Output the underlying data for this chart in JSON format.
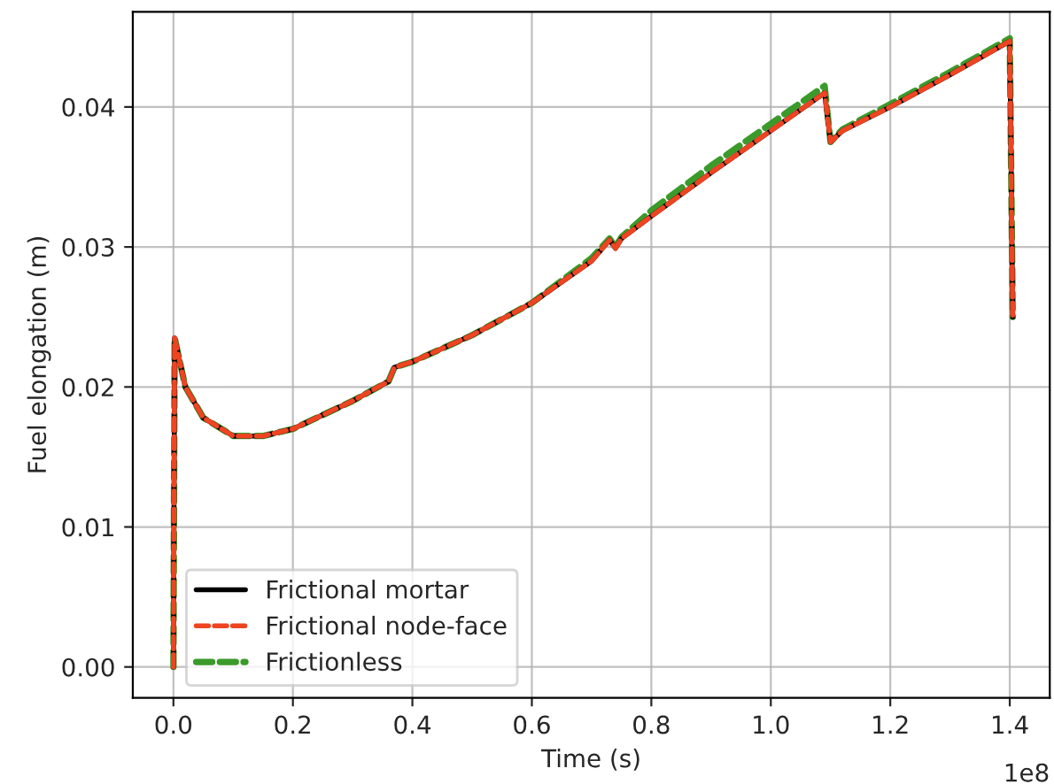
{
  "chart_data": {
    "type": "line",
    "xlabel": "Time (s)",
    "ylabel": "Fuel elongation (m)",
    "annotations": [
      "1e8"
    ],
    "x": [
      0,
      0.002,
      0.02,
      0.05,
      0.1,
      0.15,
      0.2,
      0.3,
      0.36,
      0.37,
      0.4,
      0.5,
      0.6,
      0.7,
      0.73,
      0.74,
      0.75,
      0.8,
      0.9,
      1.0,
      1.09,
      1.1,
      1.12,
      1.2,
      1.3,
      1.4,
      1.405
    ],
    "series": [
      {
        "name": "Frictional mortar",
        "color": "#000000",
        "line_style": "solid",
        "values": [
          0,
          0.0235,
          0.02,
          0.0178,
          0.0165,
          0.0165,
          0.017,
          0.019,
          0.0204,
          0.0214,
          0.0218,
          0.0237,
          0.026,
          0.029,
          0.0305,
          0.0299,
          0.0306,
          0.0322,
          0.0353,
          0.0383,
          0.041,
          0.0375,
          0.0383,
          0.04,
          0.0423,
          0.0447,
          0.025
        ]
      },
      {
        "name": "Frictional node-face",
        "color": "#ee4422",
        "line_style": "dashed",
        "values": [
          0,
          0.0235,
          0.02,
          0.0178,
          0.0165,
          0.0165,
          0.017,
          0.019,
          0.0204,
          0.0214,
          0.0218,
          0.0237,
          0.026,
          0.029,
          0.0305,
          0.0299,
          0.0306,
          0.0322,
          0.0353,
          0.0383,
          0.041,
          0.0375,
          0.0383,
          0.04,
          0.0423,
          0.0447,
          0.025
        ]
      },
      {
        "name": "Frictionless",
        "color": "#3a9a2a",
        "line_style": "dashed",
        "values": [
          0,
          0.0235,
          0.02,
          0.0178,
          0.0165,
          0.0165,
          0.017,
          0.019,
          0.0204,
          0.0214,
          0.0218,
          0.0237,
          0.026,
          0.0292,
          0.0306,
          0.03,
          0.0307,
          0.0326,
          0.0358,
          0.0388,
          0.0415,
          0.0375,
          0.0384,
          0.0402,
          0.0425,
          0.0449,
          0.025
        ]
      }
    ],
    "xlim": [
      -0.068,
      1.467
    ],
    "xticks": [
      {
        "value": 0,
        "label": "0.0"
      },
      0.2,
      0.4,
      0.6,
      0.8,
      {
        "value": 1,
        "label": "1.0"
      },
      1.2,
      1.4
    ],
    "ylim": [
      -0.0022,
      0.0468
    ],
    "yticks": [
      {
        "value": 0,
        "label": "0.00"
      },
      {
        "value": 0.01,
        "label": "0.01"
      },
      {
        "value": 0.02,
        "label": "0.02"
      },
      {
        "value": 0.03,
        "label": "0.03"
      },
      {
        "value": 0.04,
        "label": "0.04"
      }
    ],
    "grid": true,
    "legend": "bottom left",
    "marker": "none"
  }
}
